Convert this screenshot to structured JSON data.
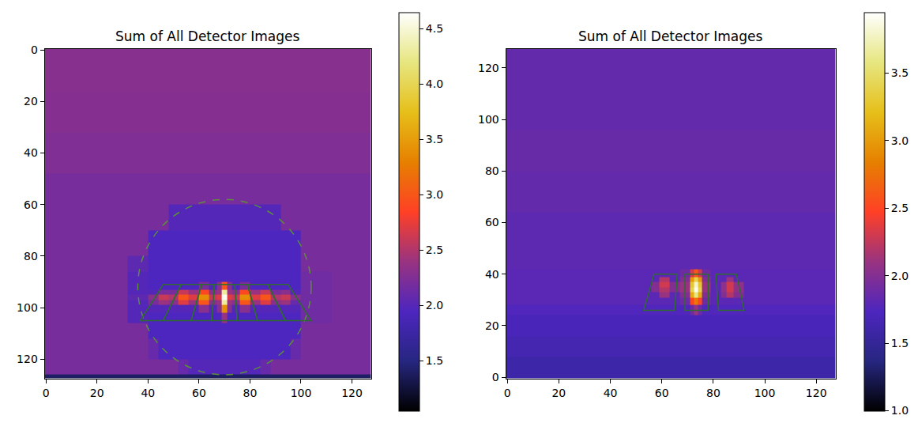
{
  "chart_data": [
    {
      "type": "heatmap",
      "title": "Sum of All Detector Images",
      "x_edges": [
        -0.5,
        16,
        32,
        40,
        44,
        48,
        52,
        56,
        60,
        64,
        67,
        69,
        71,
        73,
        76,
        80,
        84,
        88,
        92,
        96,
        100,
        112,
        127.5
      ],
      "y_edges": [
        -0.5,
        16,
        32,
        48,
        60,
        70,
        80,
        86,
        90,
        93,
        95,
        97,
        99,
        102,
        106,
        112,
        120,
        126,
        127.5
      ],
      "z": [
        [
          2.3,
          2.3,
          2.3,
          2.3,
          2.3,
          2.3,
          2.3,
          2.3,
          2.3,
          2.3,
          2.3,
          2.3,
          2.3,
          2.3,
          2.3,
          2.3,
          2.3,
          2.3,
          2.3,
          2.3,
          2.3,
          2.3
        ],
        [
          2.28,
          2.28,
          2.28,
          2.28,
          2.28,
          2.28,
          2.28,
          2.28,
          2.28,
          2.28,
          2.28,
          2.28,
          2.28,
          2.28,
          2.28,
          2.28,
          2.28,
          2.28,
          2.28,
          2.28,
          2.28,
          2.28
        ],
        [
          2.25,
          2.25,
          2.25,
          2.25,
          2.25,
          2.25,
          2.25,
          2.25,
          2.25,
          2.25,
          2.25,
          2.25,
          2.25,
          2.25,
          2.25,
          2.25,
          2.25,
          2.25,
          2.25,
          2.25,
          2.25,
          2.25
        ],
        [
          2.2,
          2.2,
          2.2,
          2.2,
          2.2,
          2.2,
          2.2,
          2.2,
          2.2,
          2.2,
          2.2,
          2.2,
          2.2,
          2.2,
          2.2,
          2.2,
          2.2,
          2.2,
          2.2,
          2.2,
          2.2,
          2.2
        ],
        [
          2.2,
          2.2,
          2.2,
          2.2,
          2.2,
          2.0,
          2.0,
          2.0,
          2.0,
          2.0,
          2.0,
          2.0,
          2.0,
          2.0,
          2.0,
          2.0,
          2.0,
          2.0,
          2.2,
          2.2,
          2.2,
          2.2
        ],
        [
          2.2,
          2.2,
          2.2,
          1.95,
          1.95,
          1.95,
          1.95,
          1.95,
          1.95,
          1.95,
          1.95,
          1.95,
          1.95,
          1.95,
          1.95,
          1.95,
          1.95,
          1.95,
          1.95,
          1.95,
          2.2,
          2.2
        ],
        [
          2.2,
          2.2,
          2.05,
          1.95,
          1.95,
          1.95,
          1.95,
          1.95,
          1.95,
          1.95,
          1.95,
          1.95,
          1.95,
          1.95,
          1.95,
          1.95,
          1.95,
          1.95,
          1.95,
          1.95,
          2.2,
          2.2
        ],
        [
          2.2,
          2.2,
          2.0,
          1.95,
          1.95,
          1.95,
          1.95,
          1.95,
          1.95,
          1.95,
          1.95,
          1.95,
          1.95,
          1.95,
          1.95,
          1.95,
          1.95,
          1.95,
          1.95,
          1.95,
          2.15,
          2.2
        ],
        [
          2.2,
          2.2,
          2.0,
          1.95,
          1.95,
          1.95,
          1.95,
          1.95,
          2.2,
          1.95,
          2.3,
          3.0,
          2.3,
          1.95,
          2.2,
          1.95,
          1.95,
          1.95,
          1.95,
          1.95,
          2.15,
          2.2
        ],
        [
          2.2,
          2.2,
          2.0,
          2.0,
          2.2,
          2.2,
          2.6,
          2.4,
          2.9,
          2.3,
          2.4,
          4.3,
          2.4,
          2.3,
          2.9,
          2.4,
          2.6,
          2.2,
          2.3,
          2.0,
          2.15,
          2.2
        ],
        [
          2.2,
          2.2,
          2.05,
          2.3,
          2.6,
          2.5,
          3.0,
          2.7,
          3.4,
          2.6,
          2.7,
          4.6,
          2.7,
          2.6,
          3.4,
          2.7,
          3.0,
          2.5,
          2.6,
          2.3,
          2.15,
          2.2
        ],
        [
          2.2,
          2.2,
          2.0,
          2.2,
          2.4,
          2.3,
          2.7,
          2.4,
          3.0,
          2.3,
          2.4,
          4.3,
          2.4,
          2.3,
          3.0,
          2.4,
          2.7,
          2.3,
          2.4,
          2.1,
          2.15,
          2.2
        ],
        [
          2.2,
          2.2,
          2.0,
          2.0,
          2.0,
          2.0,
          2.0,
          2.0,
          2.3,
          2.0,
          2.3,
          3.4,
          2.3,
          2.0,
          2.3,
          2.0,
          2.0,
          2.0,
          2.0,
          2.0,
          2.15,
          2.2
        ],
        [
          2.2,
          2.2,
          2.0,
          1.95,
          1.95,
          1.95,
          1.95,
          1.95,
          1.95,
          1.95,
          1.95,
          2.4,
          1.95,
          1.95,
          1.95,
          1.95,
          1.95,
          1.95,
          1.95,
          1.95,
          2.15,
          2.2
        ],
        [
          2.2,
          2.2,
          2.2,
          1.95,
          1.95,
          1.95,
          1.95,
          1.95,
          1.95,
          1.95,
          1.95,
          1.95,
          1.95,
          1.95,
          1.95,
          1.95,
          1.95,
          1.95,
          1.95,
          1.95,
          2.2,
          2.2
        ],
        [
          2.2,
          2.2,
          2.2,
          2.1,
          1.95,
          1.95,
          1.95,
          1.95,
          1.95,
          1.95,
          1.95,
          1.95,
          1.95,
          1.95,
          1.95,
          1.95,
          1.95,
          1.95,
          1.95,
          2.1,
          2.2,
          2.2
        ],
        [
          2.2,
          2.2,
          2.2,
          2.2,
          2.2,
          2.2,
          2.1,
          2.0,
          2.0,
          2.0,
          2.0,
          2.0,
          2.0,
          2.0,
          2.0,
          2.0,
          2.1,
          2.2,
          2.2,
          2.2,
          2.2,
          2.2
        ],
        [
          1.4,
          1.4,
          1.4,
          1.4,
          1.4,
          1.4,
          1.4,
          1.4,
          1.4,
          1.4,
          1.4,
          1.4,
          1.4,
          1.4,
          1.4,
          1.4,
          1.4,
          1.4,
          1.4,
          1.4,
          1.4,
          1.4
        ]
      ],
      "xlim": [
        -0.5,
        127.5
      ],
      "ylim": [
        127.5,
        -0.5
      ],
      "xticks": [
        0,
        20,
        40,
        60,
        80,
        100,
        120
      ],
      "yticks": [
        0,
        20,
        40,
        60,
        80,
        100,
        120
      ],
      "zlim": [
        1.05,
        4.65
      ],
      "zticks": [
        1.5,
        {
          "value": 2,
          "label": "2.0"
        },
        2.5,
        {
          "value": 3,
          "label": "3.0"
        },
        3.5,
        {
          "value": 4,
          "label": "4.0"
        },
        4.5
      ],
      "circle": {
        "cx": 70,
        "cy": 92,
        "r": 34
      },
      "polygons": [
        [
          [
            46,
            91
          ],
          [
            53,
            91
          ],
          [
            46,
            105
          ],
          [
            37,
            105
          ]
        ],
        [
          [
            53,
            91
          ],
          [
            61,
            91
          ],
          [
            57,
            105
          ],
          [
            46,
            105
          ]
        ],
        [
          [
            61,
            91
          ],
          [
            66,
            91
          ],
          [
            65,
            105
          ],
          [
            57,
            105
          ]
        ],
        [
          [
            66,
            91
          ],
          [
            74,
            91
          ],
          [
            75,
            105
          ],
          [
            65,
            105
          ]
        ],
        [
          [
            74,
            91
          ],
          [
            79,
            91
          ],
          [
            83,
            105
          ],
          [
            75,
            105
          ]
        ],
        [
          [
            79,
            91
          ],
          [
            87,
            91
          ],
          [
            94,
            105
          ],
          [
            83,
            105
          ]
        ],
        [
          [
            87,
            91
          ],
          [
            95,
            91
          ],
          [
            104,
            105
          ],
          [
            94,
            105
          ]
        ]
      ]
    },
    {
      "type": "heatmap",
      "title": "Sum of All Detector Images",
      "x_edges": [
        -0.5,
        16,
        32,
        48,
        56,
        59,
        63,
        67,
        71,
        72.5,
        74,
        75.5,
        79,
        83,
        85,
        88,
        92,
        100,
        112,
        127.5
      ],
      "y_edges": [
        -0.5,
        8,
        16,
        24,
        28,
        31,
        33,
        35,
        37,
        39,
        42,
        48,
        64,
        80,
        96,
        112,
        127.5
      ],
      "z": [
        [
          1.6,
          1.6,
          1.6,
          1.6,
          1.6,
          1.6,
          1.6,
          1.6,
          1.6,
          1.6,
          1.6,
          1.6,
          1.6,
          1.6,
          1.6,
          1.6,
          1.6,
          1.6,
          1.6
        ],
        [
          1.65,
          1.65,
          1.65,
          1.65,
          1.65,
          1.65,
          1.65,
          1.65,
          1.65,
          1.65,
          1.65,
          1.65,
          1.65,
          1.65,
          1.65,
          1.65,
          1.65,
          1.65,
          1.65
        ],
        [
          1.7,
          1.7,
          1.7,
          1.7,
          1.7,
          1.7,
          1.7,
          1.7,
          1.7,
          1.7,
          1.7,
          1.7,
          1.7,
          1.7,
          1.7,
          1.7,
          1.7,
          1.7,
          1.7
        ],
        [
          1.75,
          1.75,
          1.75,
          1.75,
          1.75,
          1.75,
          1.75,
          1.75,
          1.9,
          2.1,
          1.9,
          1.75,
          1.75,
          1.75,
          1.75,
          1.75,
          1.75,
          1.75,
          1.75
        ],
        [
          1.8,
          1.8,
          1.8,
          1.8,
          1.8,
          1.8,
          1.8,
          1.9,
          2.5,
          2.8,
          2.5,
          1.9,
          1.8,
          1.8,
          1.8,
          1.8,
          1.8,
          1.8,
          1.8
        ],
        [
          1.8,
          1.8,
          1.8,
          1.8,
          1.8,
          2.1,
          1.8,
          2.0,
          3.1,
          3.6,
          3.1,
          2.0,
          1.8,
          2.0,
          2.2,
          2.0,
          1.8,
          1.8,
          1.8
        ],
        [
          1.8,
          1.8,
          1.8,
          1.8,
          2.0,
          2.2,
          2.0,
          2.1,
          3.4,
          3.9,
          3.4,
          2.1,
          1.8,
          2.05,
          2.3,
          2.05,
          1.8,
          1.8,
          1.8
        ],
        [
          1.8,
          1.8,
          1.8,
          1.8,
          2.0,
          2.3,
          2.0,
          2.1,
          3.3,
          3.8,
          3.3,
          2.1,
          1.8,
          2.05,
          2.3,
          2.05,
          1.8,
          1.8,
          1.8
        ],
        [
          1.8,
          1.8,
          1.8,
          1.8,
          1.8,
          2.2,
          1.8,
          2.0,
          3.0,
          3.4,
          3.0,
          2.0,
          1.8,
          1.8,
          2.1,
          1.8,
          1.8,
          1.8,
          1.8
        ],
        [
          1.8,
          1.8,
          1.8,
          1.8,
          1.8,
          1.8,
          1.8,
          1.9,
          2.3,
          2.6,
          2.3,
          1.9,
          1.8,
          1.8,
          1.8,
          1.8,
          1.8,
          1.8,
          1.8
        ],
        [
          1.82,
          1.82,
          1.82,
          1.82,
          1.82,
          1.82,
          1.82,
          1.82,
          1.82,
          1.82,
          1.82,
          1.82,
          1.82,
          1.82,
          1.82,
          1.82,
          1.82,
          1.82,
          1.82
        ],
        [
          1.82,
          1.82,
          1.82,
          1.82,
          1.82,
          1.82,
          1.82,
          1.82,
          1.82,
          1.82,
          1.82,
          1.82,
          1.82,
          1.82,
          1.82,
          1.82,
          1.82,
          1.82,
          1.82
        ],
        [
          1.85,
          1.85,
          1.85,
          1.85,
          1.85,
          1.85,
          1.85,
          1.85,
          1.85,
          1.85,
          1.85,
          1.85,
          1.85,
          1.85,
          1.85,
          1.85,
          1.85,
          1.85,
          1.85
        ],
        [
          1.87,
          1.87,
          1.87,
          1.87,
          1.87,
          1.87,
          1.87,
          1.87,
          1.87,
          1.87,
          1.87,
          1.87,
          1.87,
          1.87,
          1.87,
          1.87,
          1.87,
          1.87,
          1.87
        ],
        [
          1.85,
          1.85,
          1.85,
          1.85,
          1.85,
          1.85,
          1.85,
          1.85,
          1.85,
          1.85,
          1.85,
          1.85,
          1.85,
          1.85,
          1.85,
          1.85,
          1.85,
          1.85,
          1.85
        ],
        [
          1.85,
          1.85,
          1.85,
          1.85,
          1.85,
          1.85,
          1.85,
          1.85,
          1.85,
          1.85,
          1.85,
          1.85,
          1.85,
          1.85,
          1.85,
          1.85,
          1.85,
          1.85,
          1.85
        ]
      ],
      "xlim": [
        -0.5,
        127.5
      ],
      "ylim": [
        -0.5,
        127.5
      ],
      "xticks": [
        0,
        20,
        40,
        60,
        80,
        100,
        120
      ],
      "yticks": [
        0,
        20,
        40,
        60,
        80,
        100,
        120
      ],
      "zlim": [
        1.0,
        3.95
      ],
      "zticks": [
        {
          "value": 1,
          "label": "1.0"
        },
        1.5,
        {
          "value": 2,
          "label": "2.0"
        },
        2.5,
        {
          "value": 3,
          "label": "3.0"
        },
        3.5
      ],
      "polygons": [
        [
          [
            53,
            26
          ],
          [
            65,
            26
          ],
          [
            66,
            40
          ],
          [
            57,
            40
          ]
        ],
        [
          [
            69,
            26
          ],
          [
            78,
            26
          ],
          [
            78,
            40
          ],
          [
            69,
            40
          ]
        ],
        [
          [
            82,
            26
          ],
          [
            92,
            26
          ],
          [
            89,
            40
          ],
          [
            81,
            40
          ]
        ]
      ]
    }
  ]
}
